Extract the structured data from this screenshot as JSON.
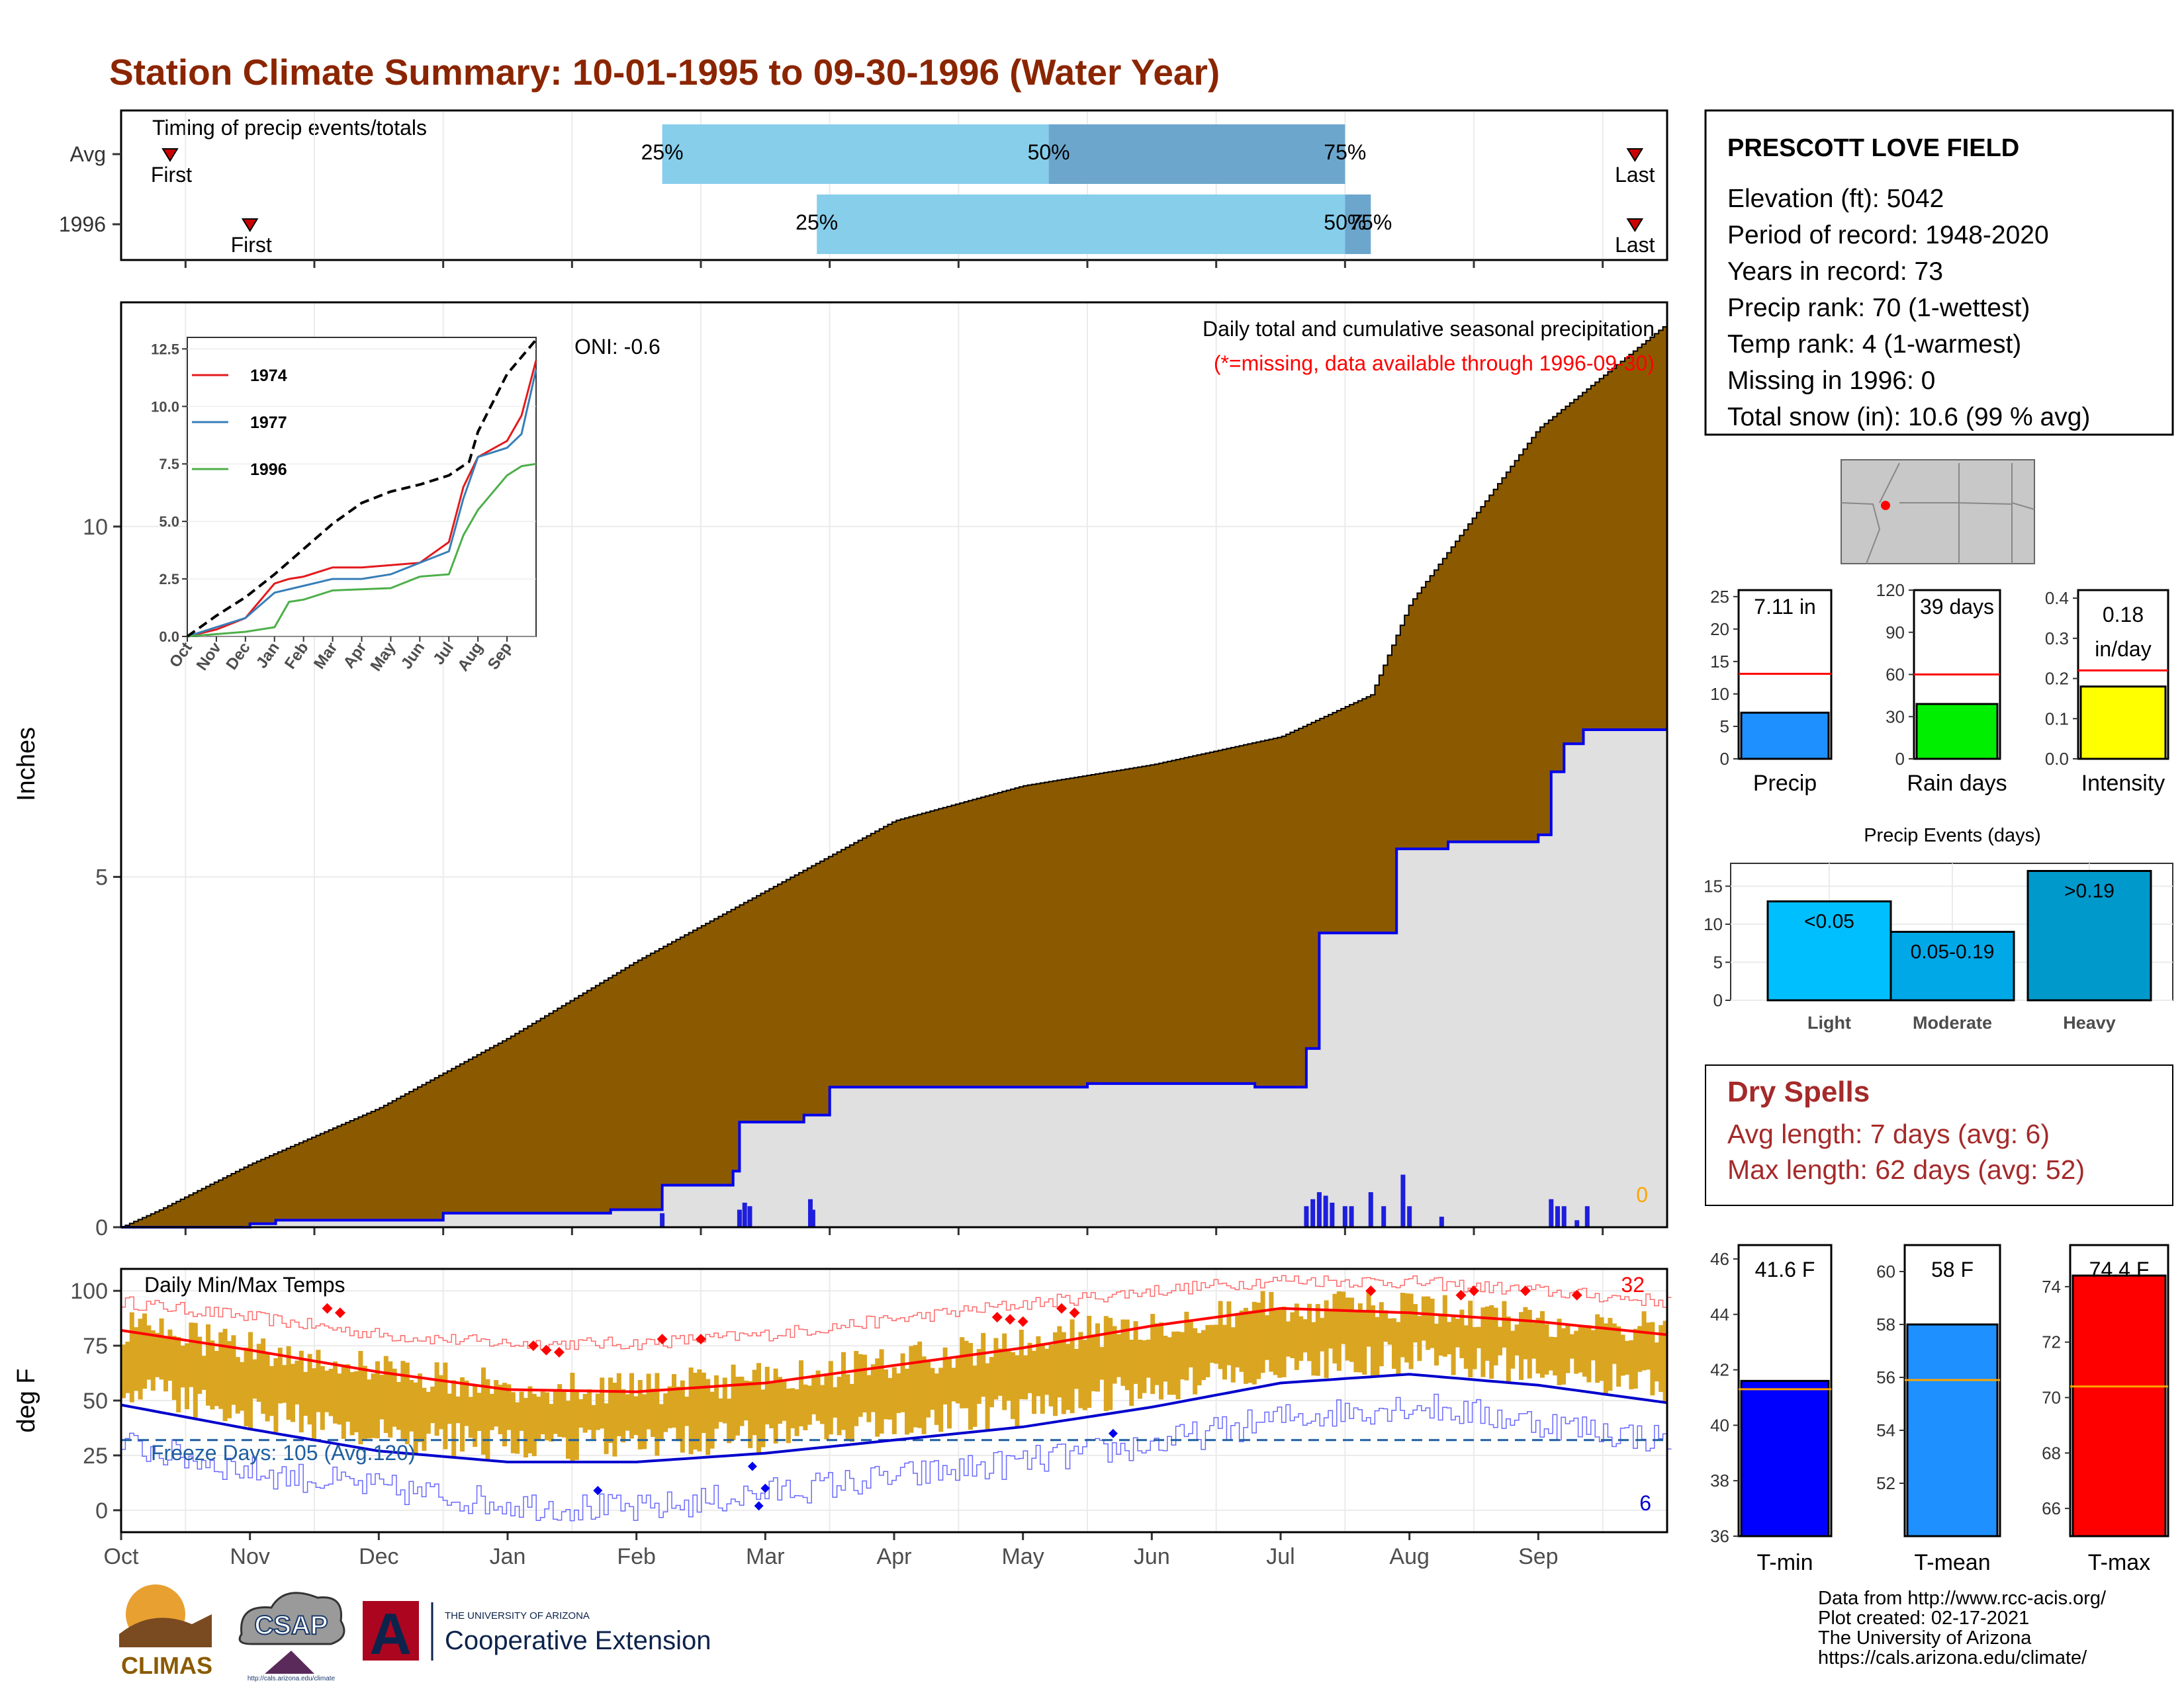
{
  "page": {
    "title": "Station Climate Summary: 10-01-1995 to 09-30-1996 (Water Year)",
    "title_color": "#8B2500",
    "footer_lines": [
      "Data from http://www.rcc-acis.org/",
      "Plot created: 02-17-2021",
      "The University of Arizona",
      "https://cals.arizona.edu/climate/"
    ],
    "logos": {
      "climas": "CLIMAS",
      "csap": "CSAP",
      "csap_url": "http://cals.arizona.edu/climate",
      "ua_small": "THE UNIVERSITY OF ARIZONA",
      "ua_big": "Cooperative Extension"
    }
  },
  "station_box": {
    "name": "PRESCOTT LOVE FIELD",
    "lines": [
      "Elevation (ft): 5042",
      "Period of record: 1948-2020",
      "Years in record: 73",
      "Precip rank: 70 (1-wettest)",
      "Temp rank: 4 (1-warmest)",
      "Missing in 1996: 0",
      "Total snow (in): 10.6 (99 % avg)"
    ]
  },
  "dry_spells": {
    "title": "Dry Spells",
    "avg": "Avg length: 7 days (avg: 6)",
    "max": "Max length: 62 days (avg: 52)",
    "color": "#A52A2A"
  },
  "chart_data": [
    {
      "id": "timing",
      "type": "bar",
      "title": "Timing of precip events/totals",
      "rows": [
        {
          "label": "Avg",
          "first_label": "First",
          "first_month_frac": 0.38,
          "p25": 4.2,
          "p50": 7.2,
          "p75": 9.5,
          "last_label": "Last",
          "last_month_frac": 11.75
        },
        {
          "label": "1996",
          "first_label": "First",
          "first_month_frac": 1.0,
          "p25": 5.4,
          "p50": 9.5,
          "p75": 9.7,
          "last_label": "Last",
          "last_month_frac": 11.75
        }
      ],
      "pct_labels": [
        "25%",
        "50%",
        "75%"
      ],
      "colors": {
        "light": "#87CEEB",
        "dark": "#6CA6CD"
      }
    },
    {
      "id": "precip",
      "type": "area",
      "title": "Daily total and cumulative seasonal precipitation",
      "subtitle": "(*=missing, data available through 1996-09-30)",
      "oni": "ONI: -0.6",
      "ylabel": "Inches",
      "ylim": [
        0,
        13.2
      ],
      "yticks": [
        0,
        5,
        10
      ],
      "missing_count": "0",
      "avg_cumulative": [
        [
          0,
          0
        ],
        [
          0.3,
          0.25
        ],
        [
          1,
          0.9
        ],
        [
          2,
          1.7
        ],
        [
          3,
          2.7
        ],
        [
          4,
          3.8
        ],
        [
          5,
          4.8
        ],
        [
          6,
          5.8
        ],
        [
          7,
          6.3
        ],
        [
          8,
          6.6
        ],
        [
          9,
          7.0
        ],
        [
          9.7,
          7.6
        ],
        [
          10,
          8.9
        ],
        [
          11,
          11.4
        ],
        [
          12,
          12.9
        ]
      ],
      "obs_cumulative": [
        [
          0,
          0
        ],
        [
          1,
          0.05
        ],
        [
          1.2,
          0.1
        ],
        [
          2.5,
          0.2
        ],
        [
          3.8,
          0.25
        ],
        [
          4.2,
          0.6
        ],
        [
          4.75,
          0.8
        ],
        [
          4.8,
          1.5
        ],
        [
          5.3,
          1.6
        ],
        [
          5.5,
          2.0
        ],
        [
          7.5,
          2.05
        ],
        [
          8.8,
          2.0
        ],
        [
          9.2,
          2.55
        ],
        [
          9.3,
          4.2
        ],
        [
          9.8,
          4.2
        ],
        [
          9.9,
          5.4
        ],
        [
          10.3,
          5.5
        ],
        [
          11.0,
          5.6
        ],
        [
          11.1,
          6.5
        ],
        [
          11.2,
          6.9
        ],
        [
          11.35,
          7.1
        ],
        [
          12,
          7.1
        ]
      ],
      "daily_bars": [
        [
          4.2,
          0.2
        ],
        [
          4.8,
          0.25
        ],
        [
          4.84,
          0.35
        ],
        [
          4.88,
          0.3
        ],
        [
          5.35,
          0.4
        ],
        [
          5.37,
          0.25
        ],
        [
          9.2,
          0.3
        ],
        [
          9.25,
          0.4
        ],
        [
          9.3,
          0.5
        ],
        [
          9.35,
          0.45
        ],
        [
          9.4,
          0.35
        ],
        [
          9.5,
          0.3
        ],
        [
          9.55,
          0.3
        ],
        [
          9.7,
          0.5
        ],
        [
          9.8,
          0.3
        ],
        [
          9.95,
          0.75
        ],
        [
          10.0,
          0.3
        ],
        [
          10.25,
          0.15
        ],
        [
          11.1,
          0.4
        ],
        [
          11.15,
          0.3
        ],
        [
          11.2,
          0.3
        ],
        [
          11.3,
          0.1
        ],
        [
          11.38,
          0.3
        ]
      ],
      "colors": {
        "cum_fill": "#8B5A00",
        "obs_fill": "#E0E0E0",
        "obs_line": "#0000EE",
        "bars": "#1E1EDD",
        "missing": "#FFA500"
      }
    },
    {
      "id": "inset",
      "type": "line",
      "xlabels": [
        "Oct",
        "Nov",
        "Dec",
        "Jan",
        "Feb",
        "Mar",
        "Apr",
        "May",
        "Jun",
        "Jul",
        "Aug",
        "Sep"
      ],
      "ylim": [
        0,
        13
      ],
      "yticks": [
        "0.0",
        "2.5",
        "5.0",
        "7.5",
        "10.0",
        "12.5"
      ],
      "series": [
        {
          "name": "1974",
          "color": "#E41A1C",
          "values": [
            [
              0,
              0
            ],
            [
              1,
              0.3
            ],
            [
              2,
              0.8
            ],
            [
              3,
              2.3
            ],
            [
              3.5,
              2.5
            ],
            [
              4,
              2.6
            ],
            [
              5,
              3.0
            ],
            [
              6,
              3.0
            ],
            [
              7,
              3.1
            ],
            [
              8,
              3.2
            ],
            [
              9,
              4.1
            ],
            [
              9.5,
              6.5
            ],
            [
              10,
              7.8
            ],
            [
              11,
              8.5
            ],
            [
              11.5,
              9.6
            ],
            [
              12,
              12.0
            ]
          ]
        },
        {
          "name": "1977",
          "color": "#377EB8",
          "values": [
            [
              0,
              0
            ],
            [
              1,
              0.4
            ],
            [
              2,
              0.8
            ],
            [
              3,
              1.9
            ],
            [
              4,
              2.2
            ],
            [
              5,
              2.5
            ],
            [
              6,
              2.5
            ],
            [
              7,
              2.7
            ],
            [
              8,
              3.2
            ],
            [
              9,
              3.7
            ],
            [
              9.5,
              6.0
            ],
            [
              10,
              7.8
            ],
            [
              11,
              8.2
            ],
            [
              11.5,
              8.8
            ],
            [
              12,
              11.6
            ]
          ]
        },
        {
          "name": "1996",
          "color": "#4DAF4A",
          "values": [
            [
              0,
              0
            ],
            [
              1,
              0.1
            ],
            [
              2,
              0.2
            ],
            [
              3,
              0.4
            ],
            [
              3.5,
              1.5
            ],
            [
              4,
              1.6
            ],
            [
              5,
              2.0
            ],
            [
              7,
              2.1
            ],
            [
              8,
              2.6
            ],
            [
              9,
              2.7
            ],
            [
              9.5,
              4.4
            ],
            [
              10,
              5.5
            ],
            [
              11,
              7.0
            ],
            [
              11.5,
              7.4
            ],
            [
              12,
              7.5
            ]
          ]
        },
        {
          "name": "",
          "color": "#000000",
          "dashed": true,
          "values": [
            [
              0,
              0
            ],
            [
              1,
              0.9
            ],
            [
              2,
              1.7
            ],
            [
              3,
              2.7
            ],
            [
              4,
              3.8
            ],
            [
              5,
              4.9
            ],
            [
              6,
              5.8
            ],
            [
              7,
              6.3
            ],
            [
              8,
              6.6
            ],
            [
              9,
              7.0
            ],
            [
              9.7,
              7.6
            ],
            [
              10,
              8.9
            ],
            [
              11,
              11.4
            ],
            [
              12,
              12.9
            ]
          ]
        }
      ]
    },
    {
      "id": "temps",
      "type": "bar",
      "title": "Daily Min/Max Temps",
      "ylabel": "deg F",
      "ylim": [
        -10,
        110
      ],
      "yticks": [
        0,
        25,
        50,
        75,
        100
      ],
      "xlabels": [
        "Oct",
        "Nov",
        "Dec",
        "Jan",
        "Feb",
        "Mar",
        "Apr",
        "May",
        "Jun",
        "Jul",
        "Aug",
        "Sep"
      ],
      "freeze_label": "Freeze Days: 105 (Avg.120)",
      "freeze_line": 32,
      "count_hot": "32",
      "count_cold": "6",
      "avg_max": [
        [
          0,
          82
        ],
        [
          1,
          73
        ],
        [
          2,
          63
        ],
        [
          3,
          55
        ],
        [
          4,
          54
        ],
        [
          5,
          58
        ],
        [
          6,
          66
        ],
        [
          7,
          74
        ],
        [
          8,
          84
        ],
        [
          9,
          92
        ],
        [
          10,
          90
        ],
        [
          11,
          86
        ],
        [
          12,
          80
        ]
      ],
      "avg_min": [
        [
          0,
          48
        ],
        [
          1,
          37
        ],
        [
          2,
          27
        ],
        [
          3,
          22
        ],
        [
          4,
          22
        ],
        [
          5,
          26
        ],
        [
          6,
          32
        ],
        [
          7,
          38
        ],
        [
          8,
          47
        ],
        [
          9,
          58
        ],
        [
          10,
          62
        ],
        [
          11,
          57
        ],
        [
          12,
          49
        ]
      ],
      "rec_max": [
        [
          0,
          95
        ],
        [
          1,
          88
        ],
        [
          2,
          80
        ],
        [
          3,
          76
        ],
        [
          4,
          76
        ],
        [
          5,
          80
        ],
        [
          6,
          87
        ],
        [
          7,
          94
        ],
        [
          8,
          100
        ],
        [
          9,
          105
        ],
        [
          10,
          104
        ],
        [
          11,
          100
        ],
        [
          12,
          95
        ]
      ],
      "rec_min": [
        [
          0,
          30
        ],
        [
          1,
          18
        ],
        [
          2,
          10
        ],
        [
          3,
          3
        ],
        [
          4,
          0
        ],
        [
          5,
          8
        ],
        [
          6,
          15
        ],
        [
          7,
          22
        ],
        [
          8,
          30
        ],
        [
          9,
          42
        ],
        [
          10,
          48
        ],
        [
          11,
          40
        ],
        [
          12,
          32
        ]
      ],
      "hot_marks": [
        [
          1.6,
          92
        ],
        [
          1.7,
          90
        ],
        [
          3.2,
          75
        ],
        [
          3.3,
          73
        ],
        [
          3.4,
          72
        ],
        [
          4.2,
          78
        ],
        [
          4.5,
          78
        ],
        [
          6.8,
          88
        ],
        [
          6.9,
          87
        ],
        [
          7.0,
          86
        ],
        [
          7.3,
          92
        ],
        [
          7.4,
          90
        ],
        [
          9.7,
          100
        ],
        [
          10.4,
          98
        ],
        [
          10.5,
          100
        ],
        [
          10.9,
          100
        ],
        [
          11.3,
          98
        ]
      ],
      "cold_marks": [
        [
          3.7,
          9
        ],
        [
          4.9,
          20
        ],
        [
          4.95,
          2
        ],
        [
          5.0,
          10
        ],
        [
          7.7,
          35
        ]
      ],
      "colors": {
        "range": "#DAA520",
        "avg_max": "#FF0000",
        "avg_min": "#0000CD",
        "rec_max": "#FF6A6A",
        "rec_min": "#6A6AFF",
        "freeze": "#1F5FA0"
      }
    },
    {
      "id": "precip_summary",
      "type": "bar",
      "categories": [
        "Precip",
        "Rain days",
        "Intensity"
      ],
      "values": [
        7.11,
        39,
        0.18
      ],
      "value_labels": [
        "7.11 in",
        "39 days",
        "0.18 in/day"
      ],
      "averages": [
        13.1,
        60,
        0.22
      ],
      "ylims": [
        [
          0,
          26
        ],
        [
          0,
          120
        ],
        [
          0,
          0.42
        ]
      ],
      "yticks": [
        [
          "0",
          "5",
          "10",
          "15",
          "20",
          "25"
        ],
        [
          "0",
          "30",
          "60",
          "90",
          "120"
        ],
        [
          "0.0",
          "0.1",
          "0.2",
          "0.3",
          "0.4"
        ]
      ],
      "colors": [
        "#1E90FF",
        "#00EE00",
        "#FFFF00"
      ]
    },
    {
      "id": "events",
      "type": "bar",
      "title": "Precip Events (days)",
      "categories": [
        "Light",
        "Moderate",
        "Heavy"
      ],
      "bar_labels": [
        "<0.05",
        "0.05-0.19",
        ">0.19"
      ],
      "values": [
        13,
        9,
        17
      ],
      "ylim": [
        0,
        18
      ],
      "yticks": [
        0,
        5,
        10,
        15
      ],
      "colors": [
        "#00BFFF",
        "#00A8E8",
        "#0099CC"
      ]
    },
    {
      "id": "temp_summary",
      "type": "bar",
      "categories": [
        "T-min",
        "T-mean",
        "T-max"
      ],
      "values": [
        41.6,
        58,
        74.4
      ],
      "value_labels": [
        "41.6 F",
        "58 F",
        "74.4 F"
      ],
      "averages": [
        41.3,
        55.9,
        70.4
      ],
      "ylims": [
        [
          36,
          46.5
        ],
        [
          50,
          61
        ],
        [
          65,
          75.5
        ]
      ],
      "yticks": [
        [
          36,
          38,
          40,
          42,
          44,
          46
        ],
        [
          52,
          54,
          56,
          58,
          60
        ],
        [
          66,
          68,
          70,
          72,
          74
        ]
      ],
      "colors": [
        "#0000FF",
        "#1E90FF",
        "#FF0000"
      ]
    }
  ]
}
